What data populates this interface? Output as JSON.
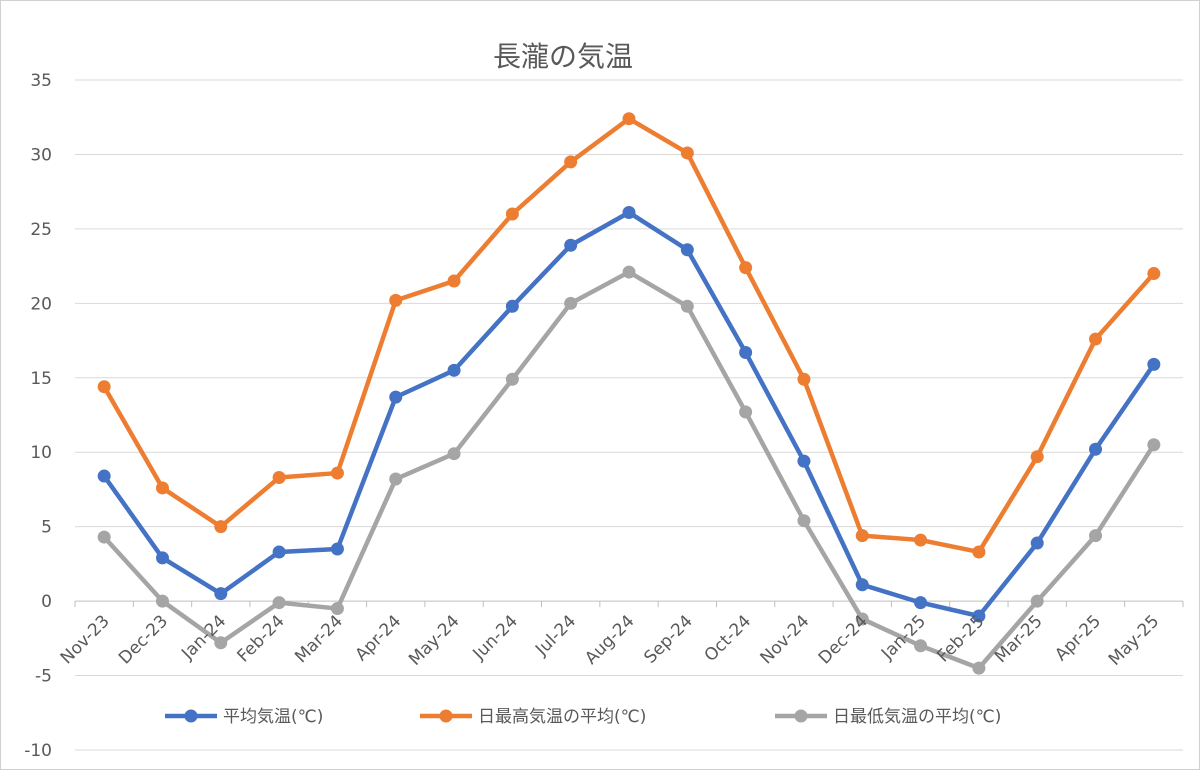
{
  "chart_data": {
    "type": "line",
    "title": "長瀧の気温",
    "categories": [
      "Nov-23",
      "Dec-23",
      "Jan-24",
      "Feb-24",
      "Mar-24",
      "Apr-24",
      "May-24",
      "Jun-24",
      "Jul-24",
      "Aug-24",
      "Sep-24",
      "Oct-24",
      "Nov-24",
      "Dec-24",
      "Jan-25",
      "Feb-25",
      "Mar-25",
      "Apr-25",
      "May-25"
    ],
    "ylim": [
      -10,
      35
    ],
    "yticks": [
      -10,
      -5,
      0,
      5,
      10,
      15,
      20,
      25,
      30,
      35
    ],
    "grid": true,
    "legend_position": "bottom",
    "series": [
      {
        "name": "平均気温(℃)",
        "color": "#4472C4",
        "values": [
          8.4,
          2.9,
          0.5,
          3.3,
          3.5,
          13.7,
          15.5,
          19.8,
          23.9,
          26.1,
          23.6,
          16.7,
          9.4,
          1.1,
          -0.1,
          -1.0,
          3.9,
          10.2,
          15.9
        ]
      },
      {
        "name": "日最高気温の平均(℃)",
        "color": "#ED7D31",
        "values": [
          14.4,
          7.6,
          5.0,
          8.3,
          8.6,
          20.2,
          21.5,
          26.0,
          29.5,
          32.4,
          30.1,
          22.4,
          14.9,
          4.4,
          4.1,
          3.3,
          9.7,
          17.6,
          22.0
        ]
      },
      {
        "name": "日最低気温の平均(℃)",
        "color": "#A5A5A5",
        "values": [
          4.3,
          0.0,
          -2.8,
          -0.1,
          -0.5,
          8.2,
          9.9,
          14.9,
          20.0,
          22.1,
          19.8,
          12.7,
          5.4,
          -1.2,
          -3.0,
          -4.5,
          0.0,
          4.4,
          10.5
        ]
      }
    ]
  }
}
